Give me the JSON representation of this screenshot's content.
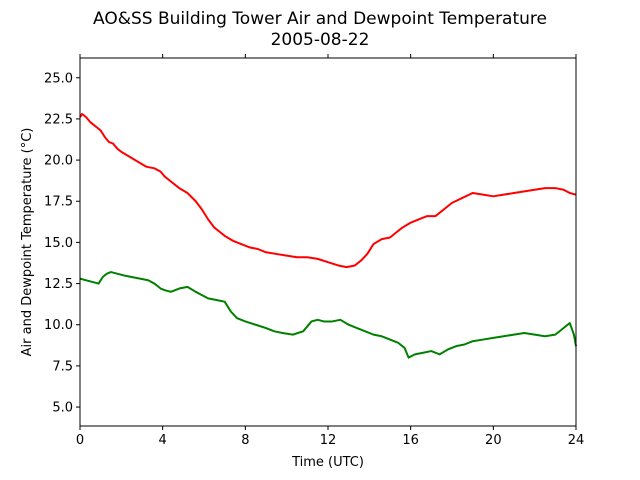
{
  "chart_data": {
    "type": "line",
    "title": "AO&SS Building Tower Air and Dewpoint Temperature",
    "subtitle": "2005-08-22",
    "xlabel": "Time (UTC)",
    "ylabel": "Air and Dewpoint Temperature (°C)",
    "xlim": [
      0,
      24
    ],
    "ylim": [
      3.85,
      26.2
    ],
    "xticks": [
      0,
      4,
      8,
      12,
      16,
      20,
      24
    ],
    "yticks": [
      5.0,
      7.5,
      10.0,
      12.5,
      15.0,
      17.5,
      20.0,
      22.5,
      25.0
    ],
    "ytick_labels": [
      "5.0",
      "7.5",
      "10.0",
      "12.5",
      "15.0",
      "17.5",
      "20.0",
      "22.5",
      "25.0"
    ],
    "grid": false,
    "legend": "none",
    "series": [
      {
        "color": "#ff0000",
        "x": [
          0.0,
          0.1,
          0.3,
          0.5,
          0.8,
          1.0,
          1.2,
          1.4,
          1.6,
          1.8,
          2.0,
          2.4,
          2.8,
          3.2,
          3.6,
          3.9,
          4.1,
          4.4,
          4.8,
          5.2,
          5.6,
          5.9,
          6.2,
          6.5,
          6.8,
          7.0,
          7.4,
          7.8,
          8.2,
          8.6,
          9.0,
          9.5,
          10.0,
          10.5,
          11.0,
          11.5,
          12.0,
          12.5,
          12.9,
          13.3,
          13.6,
          13.9,
          14.2,
          14.6,
          15.0,
          15.3,
          15.6,
          16.0,
          16.4,
          16.8,
          17.2,
          17.6,
          18.0,
          18.5,
          19.0,
          19.5,
          20.0,
          20.5,
          21.0,
          21.5,
          22.0,
          22.5,
          23.0,
          23.4,
          23.7,
          24.0
        ],
        "values": [
          22.6,
          22.8,
          22.6,
          22.3,
          22.0,
          21.8,
          21.4,
          21.1,
          21.0,
          20.7,
          20.5,
          20.2,
          19.9,
          19.6,
          19.5,
          19.3,
          19.0,
          18.7,
          18.3,
          18.0,
          17.5,
          17.0,
          16.4,
          15.9,
          15.6,
          15.4,
          15.1,
          14.9,
          14.7,
          14.6,
          14.4,
          14.3,
          14.2,
          14.1,
          14.1,
          14.0,
          13.8,
          13.6,
          13.5,
          13.6,
          13.9,
          14.3,
          14.9,
          15.2,
          15.3,
          15.6,
          15.9,
          16.2,
          16.4,
          16.6,
          16.6,
          17.0,
          17.4,
          17.7,
          18.0,
          17.9,
          17.8,
          17.9,
          18.0,
          18.1,
          18.2,
          18.3,
          18.3,
          18.2,
          18.0,
          17.9
        ]
      },
      {
        "color": "#008000",
        "x": [
          0.0,
          0.3,
          0.6,
          0.9,
          1.1,
          1.3,
          1.5,
          1.8,
          2.1,
          2.5,
          2.9,
          3.3,
          3.6,
          3.9,
          4.1,
          4.4,
          4.8,
          5.2,
          5.6,
          5.9,
          6.2,
          6.6,
          7.0,
          7.3,
          7.6,
          8.0,
          8.5,
          9.0,
          9.4,
          9.8,
          10.3,
          10.8,
          11.2,
          11.5,
          11.8,
          12.2,
          12.6,
          13.0,
          13.4,
          13.8,
          14.2,
          14.6,
          15.0,
          15.4,
          15.7,
          15.9,
          16.2,
          16.6,
          17.0,
          17.4,
          17.8,
          18.2,
          18.6,
          19.0,
          19.5,
          20.0,
          20.5,
          21.0,
          21.5,
          22.0,
          22.5,
          23.0,
          23.4,
          23.7,
          23.9,
          24.0
        ],
        "values": [
          12.8,
          12.7,
          12.6,
          12.5,
          12.9,
          13.1,
          13.2,
          13.1,
          13.0,
          12.9,
          12.8,
          12.7,
          12.5,
          12.2,
          12.1,
          12.0,
          12.2,
          12.3,
          12.0,
          11.8,
          11.6,
          11.5,
          11.4,
          10.8,
          10.4,
          10.2,
          10.0,
          9.8,
          9.6,
          9.5,
          9.4,
          9.6,
          10.2,
          10.3,
          10.2,
          10.2,
          10.3,
          10.0,
          9.8,
          9.6,
          9.4,
          9.3,
          9.1,
          8.9,
          8.6,
          8.0,
          8.2,
          8.3,
          8.4,
          8.2,
          8.5,
          8.7,
          8.8,
          9.0,
          9.1,
          9.2,
          9.3,
          9.4,
          9.5,
          9.4,
          9.3,
          9.4,
          9.8,
          10.1,
          9.4,
          8.7
        ]
      }
    ]
  }
}
